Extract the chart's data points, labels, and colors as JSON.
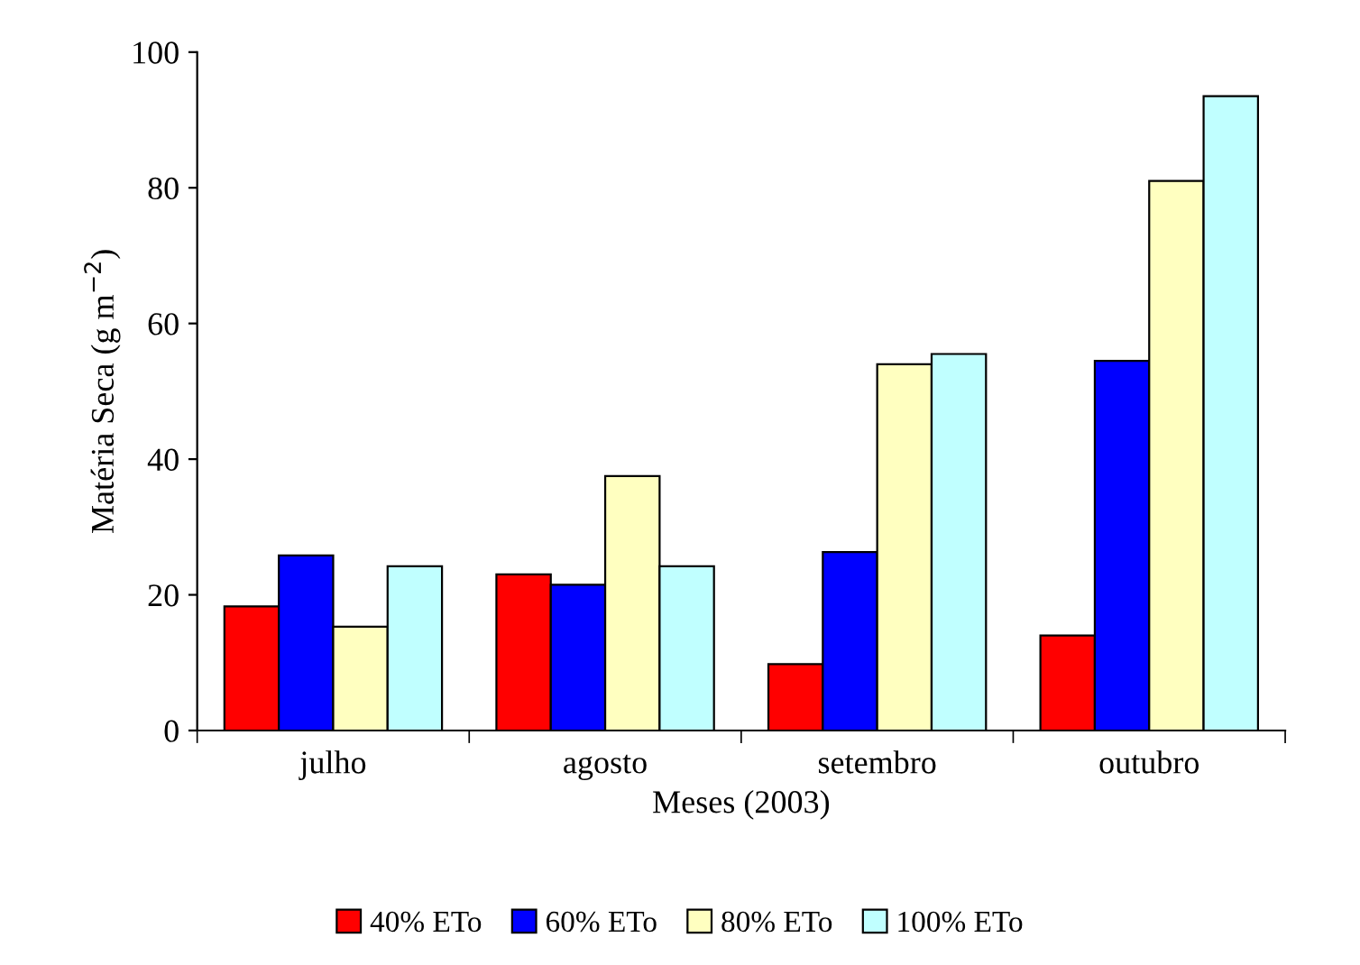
{
  "chart_data": {
    "type": "bar",
    "xlabel": "Meses (2003)",
    "ylabel": "Matéria Seca (g m$^{−2}$)",
    "categories": [
      "julho",
      "agosto",
      "setembro",
      "outubro"
    ],
    "series": [
      {
        "name": "40% ETo",
        "color": "#ff0000",
        "values": [
          18.3,
          23,
          9.8,
          14
        ]
      },
      {
        "name": "60% ETo",
        "color": "#0000ff",
        "values": [
          25.8,
          21.5,
          26.3,
          54.5
        ]
      },
      {
        "name": "80% ETo",
        "color": "#ffffc0",
        "values": [
          15.3,
          37.5,
          54,
          81
        ]
      },
      {
        "name": "100% ETo",
        "color": "#c0ffff",
        "values": [
          24.2,
          24.2,
          55.5,
          93.5
        ]
      }
    ],
    "ylim": [
      0,
      100
    ],
    "yticks": [
      0,
      20,
      40,
      60,
      80,
      100
    ],
    "grid": false,
    "legend": "bottom"
  }
}
